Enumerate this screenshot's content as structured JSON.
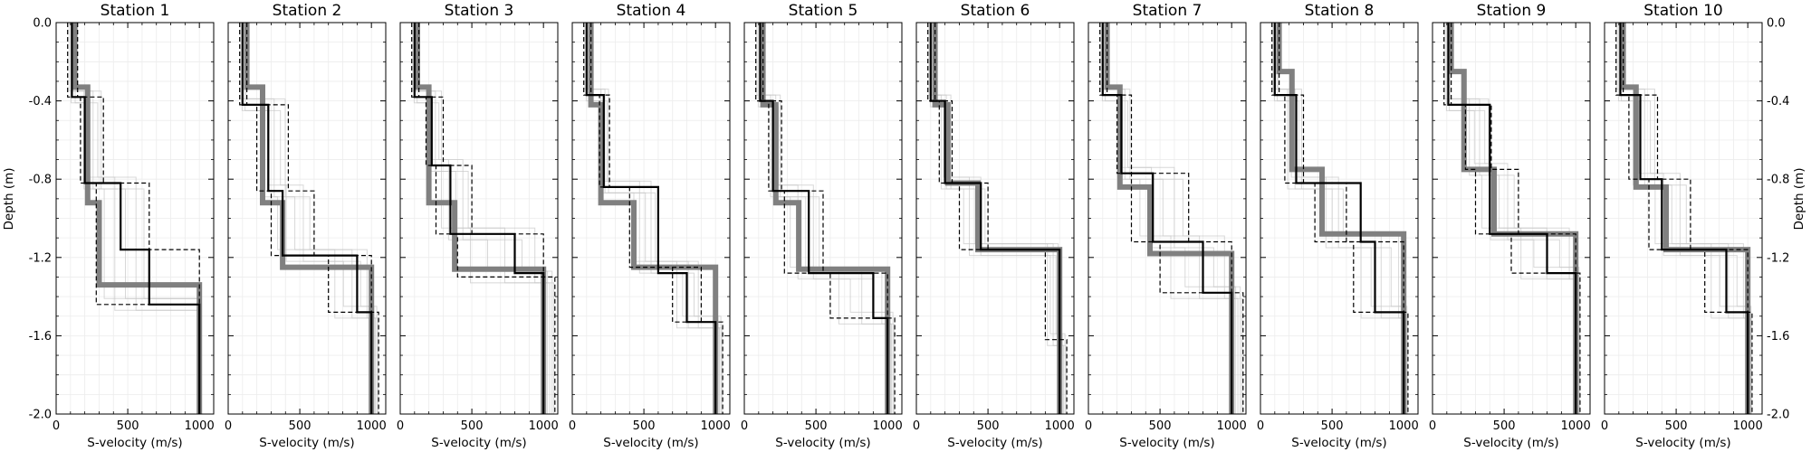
{
  "chart_data": {
    "type": "line",
    "xlabel": "S-velocity (m/s)",
    "ylabel": "Depth (m)",
    "xlim": [
      0,
      1100
    ],
    "ylim": [
      -2.0,
      0.0
    ],
    "xticks": [
      0,
      500,
      1000
    ],
    "xtick_labels": [
      "0",
      "500",
      "1000"
    ],
    "yticks": [
      0,
      -0.4,
      -0.8,
      -1.2,
      -1.6,
      -2.0
    ],
    "ytick_labels": [
      "0.0",
      "-0.4",
      "-0.8",
      "-1.2",
      "-1.6",
      "-2.0"
    ],
    "grid": true,
    "colors": {
      "true_model": "#808080",
      "best_model": "#000000",
      "bounds": "#000000",
      "ensemble": "#c8c8c8"
    },
    "stations": [
      {
        "title": "Station 1",
        "true_model": {
          "v": [
            130,
            220,
            300,
            1000
          ],
          "z": [
            0.33,
            0.92,
            1.34
          ]
        },
        "best_model": {
          "v": [
            110,
            200,
            450,
            650,
            1000
          ],
          "z": [
            0.38,
            0.82,
            1.16,
            1.44
          ]
        },
        "lower_bound": {
          "v": [
            80,
            170,
            280,
            1000
          ],
          "z": [
            0.38,
            0.82,
            1.44
          ]
        },
        "upper_bound": {
          "v": [
            150,
            330,
            650,
            1000
          ],
          "z": [
            0.38,
            0.82,
            1.16
          ]
        }
      },
      {
        "title": "Station 2",
        "true_model": {
          "v": [
            130,
            240,
            380,
            1000
          ],
          "z": [
            0.33,
            0.92,
            1.25
          ]
        },
        "best_model": {
          "v": [
            100,
            280,
            380,
            900,
            1000
          ],
          "z": [
            0.42,
            0.86,
            1.19,
            1.48
          ]
        },
        "lower_bound": {
          "v": [
            80,
            200,
            300,
            700,
            1000
          ],
          "z": [
            0.42,
            0.86,
            1.19,
            1.48
          ]
        },
        "upper_bound": {
          "v": [
            130,
            420,
            600,
            1000,
            1050
          ],
          "z": [
            0.42,
            0.86,
            1.19,
            1.48
          ]
        }
      },
      {
        "title": "Station 3",
        "true_model": {
          "v": [
            120,
            200,
            380,
            1000
          ],
          "z": [
            0.33,
            0.92,
            1.26
          ]
        },
        "best_model": {
          "v": [
            100,
            220,
            350,
            800,
            1000
          ],
          "z": [
            0.38,
            0.73,
            1.08,
            1.28
          ]
        },
        "lower_bound": {
          "v": [
            80,
            180,
            250,
            400,
            1000
          ],
          "z": [
            0.38,
            0.73,
            1.08,
            1.3
          ]
        },
        "upper_bound": {
          "v": [
            130,
            300,
            500,
            1000,
            1080
          ],
          "z": [
            0.38,
            0.73,
            1.08,
            1.3
          ]
        }
      },
      {
        "title": "Station 4",
        "true_model": {
          "v": [
            130,
            200,
            430,
            1000
          ],
          "z": [
            0.42,
            0.92,
            1.25
          ]
        },
        "best_model": {
          "v": [
            100,
            220,
            600,
            800,
            1000
          ],
          "z": [
            0.37,
            0.84,
            1.28,
            1.53
          ]
        },
        "lower_bound": {
          "v": [
            80,
            190,
            400,
            700,
            1000
          ],
          "z": [
            0.37,
            0.84,
            1.25,
            1.53
          ]
        },
        "upper_bound": {
          "v": [
            130,
            260,
            600,
            900,
            1050
          ],
          "z": [
            0.37,
            0.84,
            1.25,
            1.53
          ]
        }
      },
      {
        "title": "Station 5",
        "true_model": {
          "v": [
            130,
            220,
            380,
            1000
          ],
          "z": [
            0.42,
            0.92,
            1.26
          ]
        },
        "best_model": {
          "v": [
            110,
            200,
            450,
            900,
            1000
          ],
          "z": [
            0.4,
            0.86,
            1.28,
            1.51
          ]
        },
        "lower_bound": {
          "v": [
            80,
            170,
            280,
            600,
            1000
          ],
          "z": [
            0.4,
            0.86,
            1.28,
            1.51
          ]
        },
        "upper_bound": {
          "v": [
            130,
            260,
            550,
            1000,
            1050
          ],
          "z": [
            0.4,
            0.86,
            1.28,
            1.51
          ]
        }
      },
      {
        "title": "Station 6",
        "true_model": {
          "v": [
            130,
            220,
            430,
            1000
          ],
          "z": [
            0.42,
            0.82,
            1.16
          ]
        },
        "best_model": {
          "v": [
            100,
            200,
            450,
            1000
          ],
          "z": [
            0.4,
            0.82,
            1.16
          ]
        },
        "lower_bound": {
          "v": [
            80,
            160,
            300,
            900,
            1000
          ],
          "z": [
            0.4,
            0.82,
            1.16,
            1.62
          ]
        },
        "upper_bound": {
          "v": [
            130,
            250,
            500,
            1000,
            1050
          ],
          "z": [
            0.4,
            0.82,
            1.16,
            1.62
          ]
        }
      },
      {
        "title": "Station 7",
        "true_model": {
          "v": [
            130,
            220,
            430,
            1000
          ],
          "z": [
            0.33,
            0.84,
            1.18
          ]
        },
        "best_model": {
          "v": [
            100,
            230,
            450,
            800,
            1000
          ],
          "z": [
            0.37,
            0.77,
            1.12,
            1.38
          ]
        },
        "lower_bound": {
          "v": [
            80,
            200,
            300,
            500,
            1000
          ],
          "z": [
            0.37,
            0.77,
            1.12,
            1.38
          ]
        },
        "upper_bound": {
          "v": [
            130,
            300,
            700,
            1000,
            1080
          ],
          "z": [
            0.37,
            0.77,
            1.12,
            1.38
          ]
        }
      },
      {
        "title": "Station 8",
        "true_model": {
          "v": [
            130,
            220,
            430,
            1000
          ],
          "z": [
            0.25,
            0.75,
            1.08
          ]
        },
        "best_model": {
          "v": [
            100,
            250,
            700,
            800,
            1000
          ],
          "z": [
            0.37,
            0.82,
            1.12,
            1.48
          ]
        },
        "lower_bound": {
          "v": [
            80,
            170,
            380,
            650,
            1000
          ],
          "z": [
            0.37,
            0.82,
            1.12,
            1.48
          ]
        },
        "upper_bound": {
          "v": [
            130,
            300,
            600,
            1000,
            1030
          ],
          "z": [
            0.37,
            0.82,
            1.12,
            1.48
          ]
        }
      },
      {
        "title": "Station 9",
        "true_model": {
          "v": [
            130,
            220,
            430,
            1000
          ],
          "z": [
            0.25,
            0.75,
            1.08
          ]
        },
        "best_model": {
          "v": [
            110,
            400,
            400,
            800,
            1000
          ],
          "z": [
            0.42,
            0.75,
            1.08,
            1.28
          ]
        },
        "lower_bound": {
          "v": [
            80,
            230,
            300,
            550,
            1000
          ],
          "z": [
            0.42,
            0.75,
            1.08,
            1.28
          ]
        },
        "upper_bound": {
          "v": [
            130,
            410,
            600,
            1000,
            1030
          ],
          "z": [
            0.42,
            0.75,
            1.08,
            1.28
          ]
        }
      },
      {
        "title": "Station 10",
        "true_model": {
          "v": [
            130,
            220,
            430,
            1000
          ],
          "z": [
            0.33,
            0.84,
            1.16
          ]
        },
        "best_model": {
          "v": [
            110,
            250,
            400,
            850,
            1000
          ],
          "z": [
            0.37,
            0.8,
            1.16,
            1.48
          ]
        },
        "lower_bound": {
          "v": [
            80,
            170,
            310,
            700,
            1000
          ],
          "z": [
            0.37,
            0.8,
            1.16,
            1.48
          ]
        },
        "upper_bound": {
          "v": [
            130,
            370,
            600,
            1000,
            1030
          ],
          "z": [
            0.37,
            0.8,
            1.16,
            1.48
          ]
        }
      }
    ]
  }
}
